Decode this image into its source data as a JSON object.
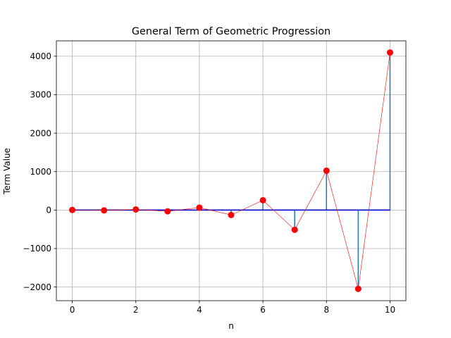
{
  "chart_data": {
    "type": "line",
    "subtype": "stem",
    "title": "General Term of Geometric Progression",
    "xlabel": "n",
    "ylabel": "Term Value",
    "x": [
      0,
      1,
      2,
      3,
      4,
      5,
      6,
      7,
      8,
      9,
      10
    ],
    "y": [
      4,
      -8,
      16,
      -32,
      64,
      -128,
      256,
      -512,
      1024,
      -2048,
      4096
    ],
    "xlim": [
      -0.5,
      10.5
    ],
    "ylim": [
      -2355,
      4400
    ],
    "xticks": [
      0,
      2,
      4,
      6,
      8,
      10
    ],
    "yticks": [
      -2000,
      -1000,
      0,
      1000,
      2000,
      3000,
      4000
    ],
    "xtick_labels": [
      "0",
      "2",
      "4",
      "6",
      "8",
      "10"
    ],
    "ytick_labels": [
      "−2000",
      "−1000",
      "0",
      "1000",
      "2000",
      "3000",
      "4000"
    ],
    "grid": true,
    "colors": {
      "stem": "#1f77b4",
      "baseline": "#0000cc",
      "marker": "#ff0000",
      "connector": "#ff0000",
      "grid": "#b0b0b0"
    }
  }
}
